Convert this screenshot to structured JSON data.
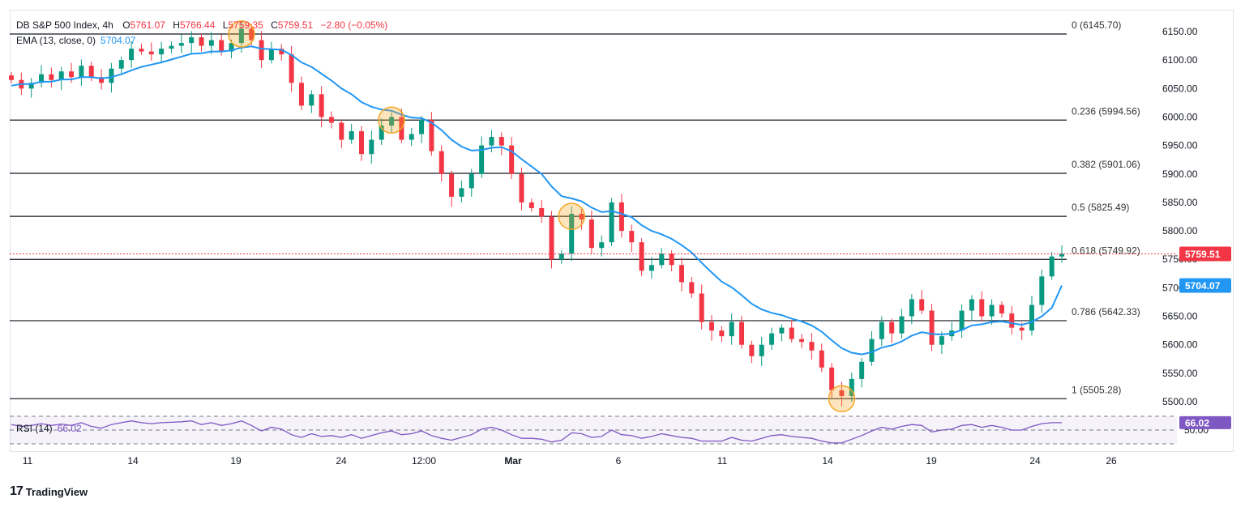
{
  "header": {
    "symbol": "DB S&P 500 Index, 4h",
    "open_label": "O",
    "open": "5761.07",
    "high_label": "H",
    "high": "5766.44",
    "low_label": "L",
    "low": "5759.35",
    "close_label": "C",
    "close": "5759.51",
    "change": "−2.80 (−0.05%)"
  },
  "ema": {
    "label": "EMA (13, close, 0)",
    "value": "5704.07",
    "color": "#2196f3"
  },
  "rsi": {
    "label": "RSI (14)",
    "value": "66.02",
    "color": "#7e57c2",
    "axis_tick": "50.00"
  },
  "price_badges": {
    "last": "5759.51",
    "ema": "5704.07"
  },
  "colors": {
    "up": "#089981",
    "down": "#f23645",
    "highlight": "#f5a623"
  },
  "brand": {
    "name": "TradingView"
  },
  "chart_data": {
    "type": "candlestick",
    "y_axis": {
      "ticks": [
        "6150.00",
        "6100.00",
        "6050.00",
        "6000.00",
        "5950.00",
        "5900.00",
        "5850.00",
        "5800.00",
        "5750.00",
        "5700.00",
        "5650.00",
        "5600.00",
        "5550.00",
        "5500.00"
      ],
      "ylim": [
        5480,
        6170
      ],
      "position": "right"
    },
    "x_axis": {
      "ticks": [
        "11",
        "14",
        "19",
        "24",
        "12:00",
        "Mar",
        "6",
        "11",
        "14",
        "19",
        "24",
        "26"
      ]
    },
    "fibonacci": [
      {
        "label": "0 (6145.70)",
        "value": 6145.7
      },
      {
        "label": "0.236 (5994.56)",
        "value": 5994.56
      },
      {
        "label": "0.382 (5901.06)",
        "value": 5901.06
      },
      {
        "label": "0.5 (5825.49)",
        "value": 5825.49
      },
      {
        "label": "0.618 (5749.92)",
        "value": 5749.92
      },
      {
        "label": "0.786 (5642.33)",
        "value": 5642.33
      },
      {
        "label": "1 (5505.28)",
        "value": 5505.28
      }
    ],
    "close_path": [
      6065,
      6050,
      6060,
      6075,
      6065,
      6080,
      6070,
      6090,
      6070,
      6060,
      6085,
      6100,
      6120,
      6115,
      6110,
      6120,
      6125,
      6130,
      6140,
      6125,
      6135,
      6115,
      6130,
      6155,
      6135,
      6100,
      6120,
      6110,
      6060,
      6020,
      6040,
      6000,
      5990,
      5960,
      5975,
      5935,
      5960,
      5985,
      6000,
      5960,
      5970,
      5995,
      5940,
      5900,
      5860,
      5875,
      5900,
      5950,
      5965,
      5950,
      5900,
      5850,
      5840,
      5825,
      5750,
      5760,
      5830,
      5820,
      5770,
      5780,
      5850,
      5800,
      5780,
      5730,
      5740,
      5760,
      5740,
      5710,
      5690,
      5640,
      5625,
      5615,
      5640,
      5600,
      5580,
      5600,
      5620,
      5630,
      5610,
      5605,
      5590,
      5560,
      5520,
      5510,
      5540,
      5570,
      5610,
      5640,
      5620,
      5650,
      5680,
      5660,
      5600,
      5615,
      5625,
      5660,
      5680,
      5650,
      5670,
      5655,
      5630,
      5625,
      5670,
      5720,
      5755,
      5759.51
    ],
    "ema_path": [
      6055,
      6058,
      6058,
      6062,
      6062,
      6066,
      6066,
      6070,
      6070,
      6068,
      6070,
      6075,
      6082,
      6088,
      6092,
      6096,
      6101,
      6106,
      6111,
      6112,
      6115,
      6115,
      6117,
      6122,
      6124,
      6120,
      6119,
      6118,
      6109,
      6096,
      6088,
      6076,
      6064,
      6050,
      6040,
      6026,
      6018,
      6013,
      6011,
      6004,
      5999,
      5998,
      5990,
      5977,
      5960,
      5948,
      5941,
      5942,
      5946,
      5947,
      5940,
      5926,
      5913,
      5900,
      5878,
      5861,
      5857,
      5852,
      5841,
      5833,
      5835,
      5830,
      5824,
      5810,
      5800,
      5794,
      5786,
      5775,
      5762,
      5744,
      5727,
      5711,
      5701,
      5687,
      5672,
      5662,
      5656,
      5652,
      5646,
      5641,
      5634,
      5623,
      5608,
      5594,
      5586,
      5583,
      5587,
      5595,
      5599,
      5606,
      5616,
      5622,
      5619,
      5618,
      5620,
      5626,
      5634,
      5636,
      5640,
      5641,
      5638,
      5635,
      5640,
      5650,
      5665,
      5704.07
    ],
    "rsi_path": [
      62,
      58,
      60,
      64,
      60,
      63,
      60,
      66,
      58,
      54,
      62,
      66,
      70,
      66,
      64,
      66,
      67,
      68,
      70,
      62,
      66,
      60,
      64,
      70,
      60,
      48,
      56,
      52,
      40,
      34,
      42,
      36,
      38,
      34,
      40,
      32,
      38,
      44,
      48,
      40,
      42,
      48,
      38,
      32,
      28,
      34,
      40,
      52,
      56,
      50,
      40,
      32,
      32,
      30,
      24,
      28,
      44,
      42,
      34,
      36,
      50,
      40,
      38,
      32,
      36,
      42,
      38,
      34,
      32,
      26,
      26,
      26,
      34,
      28,
      26,
      32,
      38,
      40,
      36,
      34,
      32,
      26,
      22,
      22,
      30,
      38,
      48,
      56,
      52,
      58,
      62,
      60,
      46,
      50,
      52,
      60,
      62,
      56,
      60,
      56,
      50,
      50,
      58,
      64,
      66,
      66.02
    ],
    "highlights": [
      {
        "index": 23,
        "value": 6145.7
      },
      {
        "index": 38,
        "value": 5994.56
      },
      {
        "index": 56,
        "value": 5825.49
      },
      {
        "index": 83,
        "value": 5505.28
      }
    ]
  }
}
